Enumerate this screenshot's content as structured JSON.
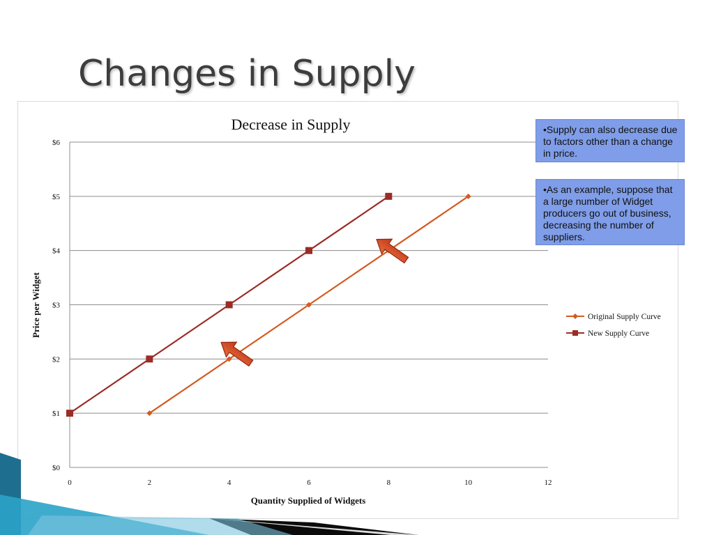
{
  "slide": {
    "title": "Changes in Supply"
  },
  "callouts": [
    "•Supply can also decrease due to factors other than a change in price.",
    "•As an example, suppose that a large number of Widget producers go out of business, decreasing the number of suppliers."
  ],
  "chart_data": {
    "type": "line",
    "title": "Decrease in Supply",
    "xlabel": "Quantity Supplied of Widgets",
    "ylabel": "Price per Widget",
    "xlim": [
      0,
      12
    ],
    "ylim": [
      0,
      6
    ],
    "x_ticks": [
      0,
      2,
      4,
      6,
      8,
      10,
      12
    ],
    "y_ticks": [
      0,
      1,
      2,
      3,
      4,
      5,
      6
    ],
    "y_tick_labels": [
      "$0",
      "$1",
      "$2",
      "$3",
      "$4",
      "$5",
      "$6"
    ],
    "grid": "horizontal",
    "legend_position": "right",
    "series": [
      {
        "name": "Original Supply Curve",
        "color": "#d35a20",
        "marker": "diamond",
        "points": [
          [
            2,
            1
          ],
          [
            4,
            2
          ],
          [
            6,
            3
          ],
          [
            8,
            4
          ],
          [
            10,
            5
          ]
        ]
      },
      {
        "name": "New Supply Curve",
        "color": "#9b2c26",
        "marker": "square",
        "points": [
          [
            0,
            1
          ],
          [
            2,
            2
          ],
          [
            4,
            3
          ],
          [
            6,
            4
          ],
          [
            8,
            5
          ]
        ]
      }
    ],
    "annotations": [
      {
        "type": "arrow",
        "direction": "up-left",
        "at": [
          4.2,
          2.1
        ],
        "color": "#d9481e"
      },
      {
        "type": "arrow",
        "direction": "up-left",
        "at": [
          8.1,
          4.0
        ],
        "color": "#d9481e"
      }
    ]
  }
}
